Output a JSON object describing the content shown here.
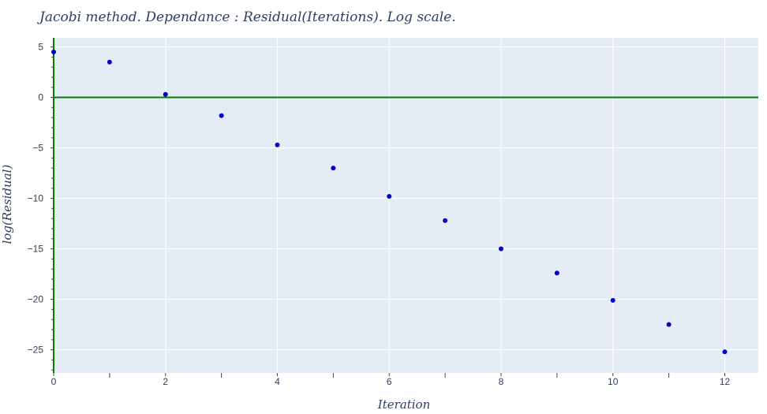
{
  "chart_data": {
    "type": "scatter",
    "title": "Jacobi method. Dependance : Residual(Iterations). Log scale.",
    "xlabel": "Iteration",
    "ylabel": "log(Residual)",
    "x": [
      0,
      1,
      2,
      3,
      4,
      5,
      6,
      7,
      8,
      9,
      10,
      11,
      12
    ],
    "y": [
      4.5,
      3.5,
      0.3,
      -1.8,
      -4.7,
      -7.0,
      -9.8,
      -12.2,
      -15.0,
      -17.4,
      -20.1,
      -22.5,
      -25.2
    ],
    "xlim": [
      0,
      12.6
    ],
    "ylim": [
      -27.3,
      5.9
    ],
    "x_ticks": [
      0,
      2,
      4,
      6,
      8,
      10,
      12
    ],
    "x_tick_labels": [
      "0",
      "2",
      "4",
      "6",
      "8",
      "10",
      "12"
    ],
    "y_ticks": [
      5,
      0,
      -5,
      -10,
      -15,
      -20,
      -25
    ],
    "y_tick_labels": [
      "5",
      "0",
      "−5",
      "−10",
      "−15",
      "−20",
      "−25"
    ],
    "grid": true,
    "colors": {
      "marker": "#0000cc",
      "plot_bg": "#e5ecf6",
      "zero_line": "#008000",
      "grid": "#ffffff",
      "text": "#2a3f5f"
    }
  }
}
